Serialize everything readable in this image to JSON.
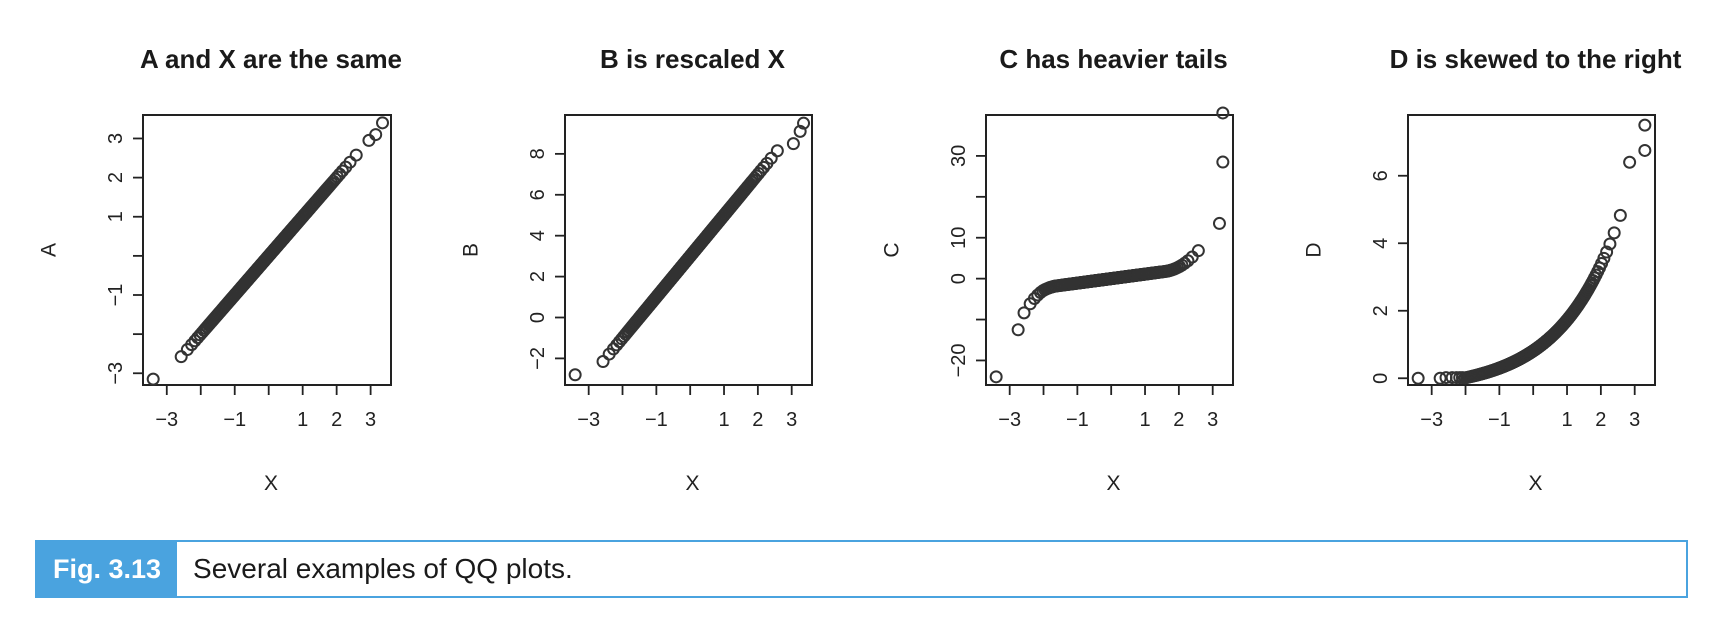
{
  "chart_data": [
    {
      "type": "scatter",
      "title": "A and X are the same",
      "xlabel": "X",
      "ylabel": "A",
      "xlim": [
        -3.7,
        3.6
      ],
      "ylim": [
        -3.3,
        3.6
      ],
      "xticks": [
        -3,
        -2,
        -1,
        0,
        1,
        2,
        3
      ],
      "xtick_labels": [
        "-3",
        "",
        "-1",
        "",
        "1",
        "2",
        "3"
      ],
      "yticks": [
        -3,
        -2,
        -1,
        0,
        1,
        2,
        3
      ],
      "ytick_labels": [
        "-3",
        "",
        "-1",
        "",
        "1",
        "2",
        "3"
      ],
      "shape": "identity",
      "outliers": [
        [
          -3.4,
          -3.15
        ],
        [
          3.35,
          3.4
        ],
        [
          3.15,
          3.1
        ],
        [
          2.95,
          2.95
        ]
      ],
      "grid": false
    },
    {
      "type": "scatter",
      "title": "B is rescaled X",
      "xlabel": "X",
      "ylabel": "B",
      "xlim": [
        -3.7,
        3.6
      ],
      "ylim": [
        -3.3,
        9.9
      ],
      "xticks": [
        -3,
        -2,
        -1,
        0,
        1,
        2,
        3
      ],
      "xtick_labels": [
        "-3",
        "",
        "-1",
        "",
        "1",
        "2",
        "3"
      ],
      "yticks": [
        -2,
        0,
        2,
        4,
        6,
        8
      ],
      "ytick_labels": [
        "-2",
        "0",
        "2",
        "4",
        "6",
        "8"
      ],
      "shape": "rescaled",
      "outliers": [
        [
          -3.4,
          -2.8
        ],
        [
          3.35,
          9.5
        ],
        [
          3.25,
          9.1
        ],
        [
          3.05,
          8.5
        ]
      ],
      "grid": false
    },
    {
      "type": "scatter",
      "title": "C has heavier tails",
      "xlabel": "X",
      "ylabel": "C",
      "xlim": [
        -3.7,
        3.6
      ],
      "ylim": [
        -26,
        40
      ],
      "xticks": [
        -3,
        -2,
        -1,
        0,
        1,
        2,
        3
      ],
      "xtick_labels": [
        "-3",
        "",
        "-1",
        "",
        "1",
        "2",
        "3"
      ],
      "yticks": [
        -20,
        -10,
        0,
        10,
        20,
        30
      ],
      "ytick_labels": [
        "-20",
        "",
        "0",
        "10",
        "",
        "30"
      ],
      "shape": "heavy-tails",
      "outliers": [
        [
          -3.4,
          -24
        ],
        [
          -2.75,
          -12.5
        ],
        [
          3.2,
          13.5
        ],
        [
          3.3,
          28.5
        ],
        [
          3.3,
          40.5
        ]
      ],
      "grid": false
    },
    {
      "type": "scatter",
      "title": "D is skewed to the right",
      "xlabel": "X",
      "ylabel": "D",
      "xlim": [
        -3.7,
        3.6
      ],
      "ylim": [
        -0.2,
        7.8
      ],
      "xticks": [
        -3,
        -2,
        -1,
        0,
        1,
        2,
        3
      ],
      "xtick_labels": [
        "-3",
        "",
        "-1",
        "",
        "1",
        "2",
        "3"
      ],
      "yticks": [
        0,
        2,
        4,
        6
      ],
      "ytick_labels": [
        "0",
        "2",
        "4",
        "6"
      ],
      "shape": "right-skew",
      "outliers": [
        [
          -3.4,
          0.0
        ],
        [
          -2.75,
          0.0
        ],
        [
          2.85,
          6.4
        ],
        [
          3.3,
          6.75
        ],
        [
          3.3,
          7.5
        ]
      ],
      "grid": false
    }
  ],
  "caption": {
    "label": "Fig. 3.13",
    "text": "Several examples of QQ plots."
  }
}
